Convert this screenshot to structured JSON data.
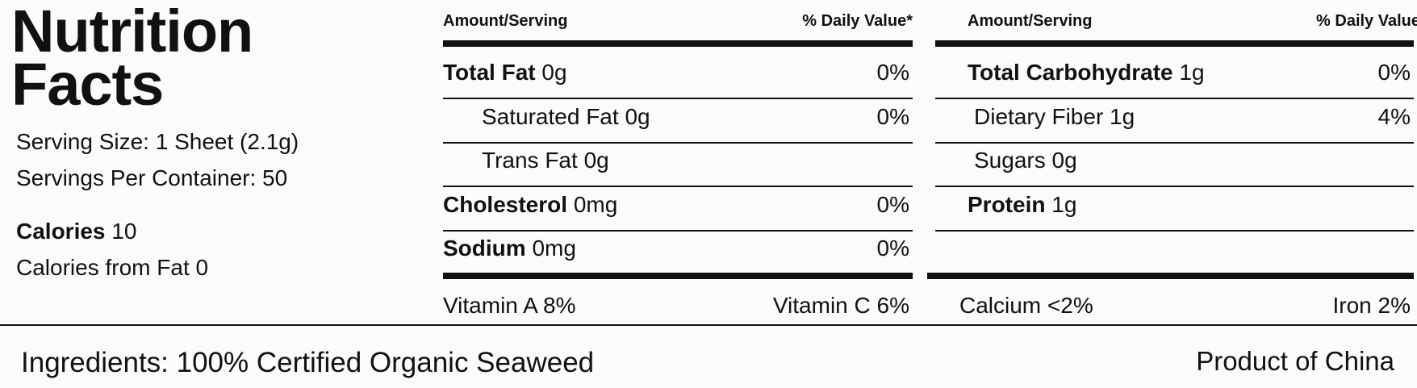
{
  "title": [
    "Nutrition",
    "Facts"
  ],
  "serving": [
    "Serving Size: 1 Sheet (2.1g)",
    "Servings Per Container: 50"
  ],
  "calories": {
    "label": "Calories",
    "value": "10"
  },
  "calories_from_fat": {
    "label": "Calories from Fat",
    "value": "0"
  },
  "panels": [
    {
      "header": {
        "amount": "Amount/Serving",
        "dv": "% Daily Value*"
      },
      "rows": [
        {
          "name": "Total Fat",
          "amount": "0g",
          "dv": "0%",
          "bold": true
        },
        {
          "name": "Saturated Fat",
          "amount": "0g",
          "dv": "0%",
          "indent": true
        },
        {
          "name": "Trans Fat",
          "amount": "0g",
          "indent": true
        },
        {
          "name": "Cholesterol",
          "amount": "0mg",
          "dv": "0%",
          "bold": true
        },
        {
          "name": "Sodium",
          "amount": "0mg",
          "dv": "0%",
          "bold": true
        }
      ],
      "footer": [
        {
          "name": "Vitamin A",
          "value": "8%"
        },
        {
          "name": "Vitamin C",
          "value": "6%"
        }
      ]
    },
    {
      "header": {
        "amount": "Amount/Serving",
        "dv": "% Daily Value"
      },
      "rows": [
        {
          "name": "Total Carbohydrate",
          "amount": "1g",
          "dv": "0%",
          "bold": true
        },
        {
          "name": "Dietary Fiber",
          "amount": "1g",
          "dv": "4%",
          "indent": true
        },
        {
          "name": "Sugars",
          "amount": "0g",
          "indent": true
        },
        {
          "name": "Protein",
          "amount": "1g",
          "bold": true
        }
      ],
      "footer": [
        {
          "name": "Calcium",
          "value": "<2%"
        },
        {
          "name": "Iron",
          "value": "2%"
        }
      ]
    }
  ],
  "ingredients": "Ingredients: 100% Certified Organic Seaweed",
  "origin": "Product of China"
}
